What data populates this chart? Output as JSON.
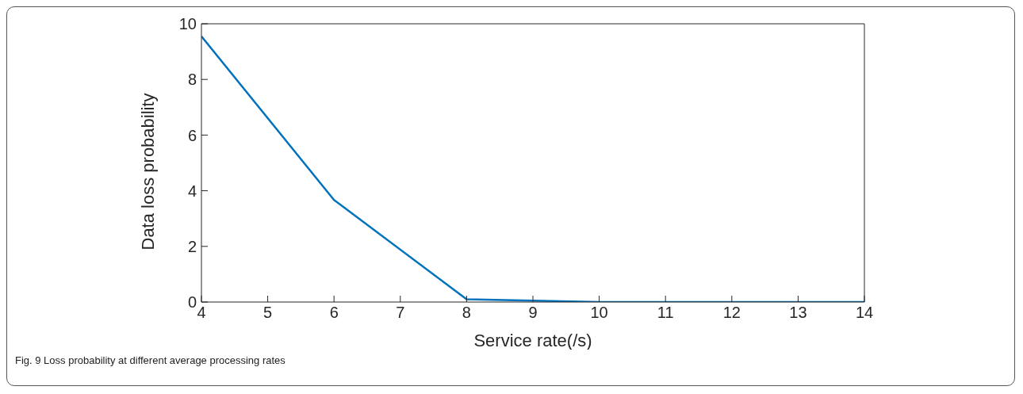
{
  "chart_data": {
    "type": "line",
    "xlabel": "Service rate(/s)",
    "ylabel": "Data loss probability",
    "annotations": [
      "Fig. 9  Loss probability at different average processing rates"
    ],
    "x": [
      4,
      6,
      8,
      10,
      12,
      14
    ],
    "series": [
      {
        "color": "#0072bd",
        "values": [
          9.55,
          3.67,
          0.1,
          0,
          0,
          0
        ]
      }
    ],
    "xlim": [
      4,
      14
    ],
    "xticks": [
      4,
      5,
      6,
      7,
      8,
      9,
      10,
      11,
      12,
      13,
      14
    ],
    "ylim": [
      0,
      10
    ],
    "yticks": [
      0,
      2,
      4,
      6,
      8,
      10
    ],
    "grid": false,
    "legend": false,
    "marker": "none",
    "line_style": "solid"
  }
}
